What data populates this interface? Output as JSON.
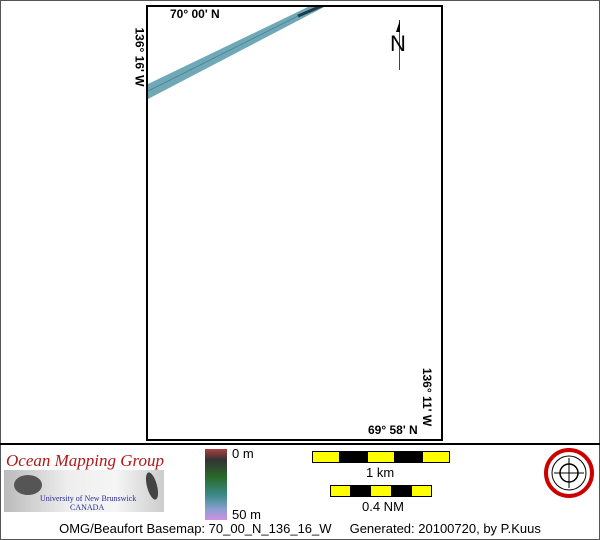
{
  "map": {
    "lat_top": "70° 00' N",
    "lat_bottom": "69° 58' N",
    "lon_left": "136° 16' W",
    "lon_right": "136° 11' W",
    "north_arrow": "N",
    "swath_color": "#6fa9b8"
  },
  "legend": {
    "org_name": "Ocean Mapping Group",
    "university": "University of New Brunswick",
    "country": "CANADA",
    "depth_min": "0 m",
    "depth_max": "50 m",
    "scale_km": "1 km",
    "scale_nm": "0.4 NM",
    "footer": "OMG/Beaufort Basemap: 70_00_N_136_16_W     Generated: 20100720, by P.Kuus",
    "colors": {
      "scale_yellow": "#ffff00",
      "scale_black": "#000000",
      "org_red": "#b01818",
      "univ_blue": "#2a2a9a"
    }
  }
}
